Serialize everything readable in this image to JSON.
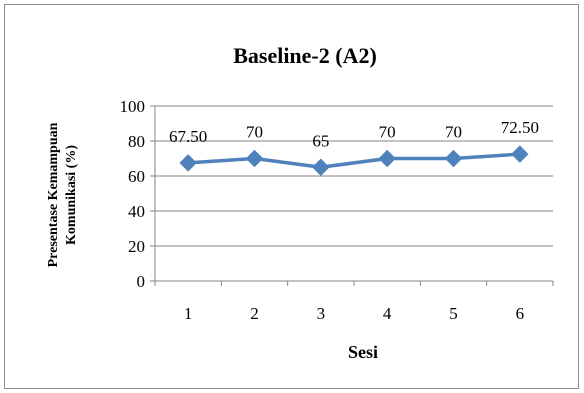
{
  "chart_data": {
    "type": "line",
    "title": "Baseline-2 (A2)",
    "xlabel": "Sesi",
    "ylabel_lines": [
      "Presentase Kemampuan",
      "Komunikasi (%)"
    ],
    "categories": [
      "1",
      "2",
      "3",
      "4",
      "5",
      "6"
    ],
    "series": [
      {
        "values": [
          67.5,
          70,
          65,
          70,
          70,
          72.5
        ],
        "data_labels": [
          "67.50",
          "70",
          "65",
          "70",
          "70",
          "72.50"
        ],
        "color": "#4f81bd",
        "marker": "diamond"
      }
    ],
    "ylim": [
      0,
      100
    ],
    "yticks": [
      0,
      20,
      40,
      60,
      80,
      100
    ],
    "ytick_labels": [
      "0",
      "20",
      "40",
      "60",
      "80",
      "100"
    ],
    "grid": true,
    "legend": "none"
  }
}
